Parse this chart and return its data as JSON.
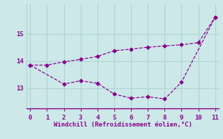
{
  "line1_x": [
    0,
    1,
    2,
    3,
    4,
    5,
    6,
    7,
    8,
    9,
    10,
    11
  ],
  "line1_y": [
    13.85,
    13.85,
    13.97,
    14.06,
    14.17,
    14.38,
    14.44,
    14.51,
    14.56,
    14.6,
    14.68,
    15.62
  ],
  "line2_x": [
    0,
    2,
    3,
    4,
    5,
    6,
    7,
    8,
    9,
    11
  ],
  "line2_y": [
    13.85,
    13.15,
    13.27,
    13.18,
    12.78,
    12.63,
    12.68,
    12.6,
    13.22,
    15.62
  ],
  "line_color": "#8B008B",
  "bg_color": "#cce8e8",
  "grid_color": "#aed4d4",
  "xlabel": "Windchill (Refroidissement éolien,°C)",
  "xlabel_color": "#8B008B",
  "tick_color": "#8B008B",
  "xlim": [
    -0.2,
    11.2
  ],
  "ylim": [
    12.25,
    16.1
  ],
  "yticks": [
    13,
    14,
    15
  ],
  "xticks": [
    0,
    1,
    2,
    3,
    4,
    5,
    6,
    7,
    8,
    9,
    10,
    11
  ]
}
